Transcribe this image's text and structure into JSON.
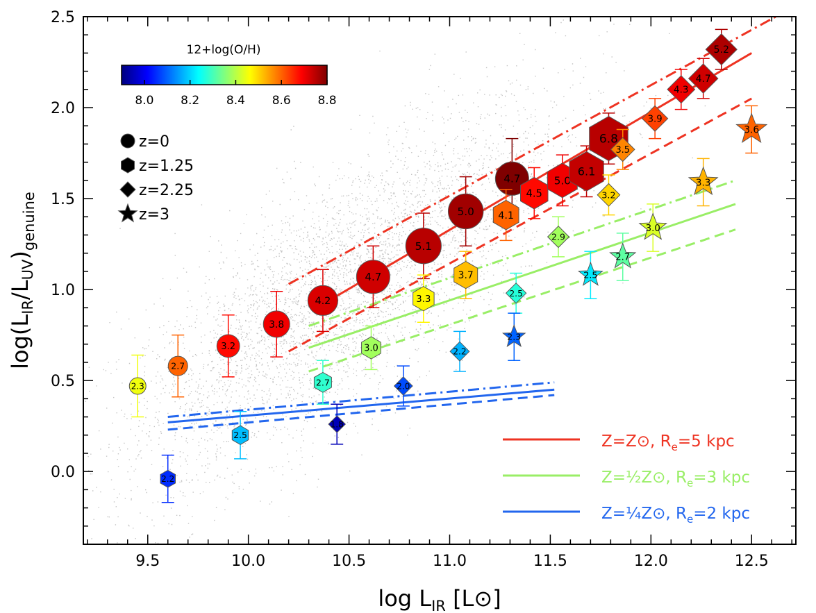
{
  "chart_data": {
    "type": "scatter",
    "xlabel": "log L",
    "xlabel_sub": "IR",
    "xlabel_unit": "[L⊙]",
    "ylabel": "log(L",
    "ylabel_sub1": "IR",
    "ylabel_mid": "/L",
    "ylabel_sub2": "UV",
    "ylabel_close": ")",
    "ylabel_sub3": "genuine",
    "xlim": [
      9.18,
      12.72
    ],
    "ylim": [
      -0.4,
      2.5
    ],
    "x_ticks": [
      "9.5",
      "10.0",
      "10.5",
      "11.0",
      "11.5",
      "12.0",
      "12.5"
    ],
    "y_ticks": [
      "0.0",
      "0.5",
      "1.0",
      "1.5",
      "2.0",
      "2.5"
    ],
    "colorbar": {
      "title": "12+log(O/H)",
      "range": [
        7.9,
        8.8
      ],
      "ticks": [
        "8.0",
        "8.2",
        "8.4",
        "8.6",
        "8.8"
      ]
    },
    "marker_legend": [
      {
        "shape": "circle",
        "label": "z=0"
      },
      {
        "shape": "hexagon",
        "label": "z=1.25"
      },
      {
        "shape": "diamond",
        "label": "z=2.25"
      },
      {
        "shape": "star",
        "label": "z=3"
      }
    ],
    "line_legend": [
      {
        "color": "#ee3322",
        "label": "Z=Z⊙, Re=5 kpc"
      },
      {
        "color": "#99ee66",
        "label": "Z=½Z⊙, Re=3 kpc"
      },
      {
        "color": "#2266ee",
        "label": "Z=¼Z⊙, Re=2 kpc"
      }
    ],
    "lines": [
      {
        "color": "#ee3322",
        "style": "solid",
        "x": [
          10.37,
          12.5
        ],
        "y": [
          0.92,
          2.3
        ]
      },
      {
        "color": "#ee3322",
        "style": "dashdot",
        "x": [
          10.2,
          12.62
        ],
        "y": [
          1.03,
          2.5
        ]
      },
      {
        "color": "#ee3322",
        "style": "dash",
        "x": [
          10.2,
          12.5
        ],
        "y": [
          0.66,
          2.05
        ]
      },
      {
        "color": "#99ee66",
        "style": "solid",
        "x": [
          10.3,
          12.42
        ],
        "y": [
          0.68,
          1.47
        ]
      },
      {
        "color": "#99ee66",
        "style": "dashdot",
        "x": [
          10.3,
          12.42
        ],
        "y": [
          0.8,
          1.6
        ]
      },
      {
        "color": "#99ee66",
        "style": "dash",
        "x": [
          10.3,
          12.42
        ],
        "y": [
          0.55,
          1.33
        ]
      },
      {
        "color": "#2266ee",
        "style": "solid",
        "x": [
          9.6,
          11.52
        ],
        "y": [
          0.27,
          0.45
        ]
      },
      {
        "color": "#2266ee",
        "style": "dashdot",
        "x": [
          9.6,
          11.52
        ],
        "y": [
          0.3,
          0.49
        ]
      },
      {
        "color": "#2266ee",
        "style": "dash",
        "x": [
          9.6,
          11.52
        ],
        "y": [
          0.23,
          0.42
        ]
      }
    ],
    "series": [
      {
        "name": "z=0",
        "shape": "circle",
        "points": [
          {
            "x": 9.45,
            "y": 0.47,
            "err": 0.17,
            "oh": 8.45,
            "size": 0.6,
            "label": "2.3"
          },
          {
            "x": 9.65,
            "y": 0.58,
            "err": 0.17,
            "oh": 8.6,
            "size": 0.7,
            "label": "2.7"
          },
          {
            "x": 9.9,
            "y": 0.69,
            "err": 0.17,
            "oh": 8.68,
            "size": 0.82,
            "label": "3.2"
          },
          {
            "x": 10.14,
            "y": 0.81,
            "err": 0.18,
            "oh": 8.7,
            "size": 0.95,
            "label": "3.8"
          },
          {
            "x": 10.37,
            "y": 0.94,
            "err": 0.17,
            "oh": 8.72,
            "size": 1.08,
            "label": "4.2"
          },
          {
            "x": 10.62,
            "y": 1.07,
            "err": 0.17,
            "oh": 8.73,
            "size": 1.2,
            "label": "4.7"
          },
          {
            "x": 10.87,
            "y": 1.24,
            "err": 0.18,
            "oh": 8.75,
            "size": 1.28,
            "label": "5.1"
          },
          {
            "x": 11.08,
            "y": 1.43,
            "err": 0.19,
            "oh": 8.77,
            "size": 1.26,
            "label": "5.0"
          },
          {
            "x": 11.31,
            "y": 1.61,
            "err": 0.22,
            "oh": 8.8,
            "size": 1.2,
            "label": "4.7"
          }
        ]
      },
      {
        "name": "z=1.25",
        "shape": "hexagon",
        "points": [
          {
            "x": 9.6,
            "y": -0.04,
            "err": 0.13,
            "oh": 8.05,
            "size": 0.62,
            "label": "2.2"
          },
          {
            "x": 9.96,
            "y": 0.2,
            "err": 0.13,
            "oh": 8.18,
            "size": 0.68,
            "label": "2.5"
          },
          {
            "x": 10.37,
            "y": 0.49,
            "err": 0.12,
            "oh": 8.28,
            "size": 0.72,
            "label": "2.7"
          },
          {
            "x": 10.61,
            "y": 0.68,
            "err": 0.12,
            "oh": 8.38,
            "size": 0.8,
            "label": "3.0"
          },
          {
            "x": 10.87,
            "y": 0.95,
            "err": 0.13,
            "oh": 8.47,
            "size": 0.88,
            "label": "3.3"
          },
          {
            "x": 11.08,
            "y": 1.08,
            "err": 0.13,
            "oh": 8.52,
            "size": 0.98,
            "label": "3.7"
          },
          {
            "x": 11.28,
            "y": 1.41,
            "err": 0.14,
            "oh": 8.6,
            "size": 1.06,
            "label": "4.1"
          },
          {
            "x": 11.42,
            "y": 1.53,
            "err": 0.14,
            "oh": 8.68,
            "size": 1.14,
            "label": "4.5"
          },
          {
            "x": 11.56,
            "y": 1.6,
            "err": 0.14,
            "oh": 8.7,
            "size": 1.24,
            "label": "5.0"
          },
          {
            "x": 11.68,
            "y": 1.65,
            "err": 0.14,
            "oh": 8.74,
            "size": 1.42,
            "label": "6.1"
          },
          {
            "x": 11.79,
            "y": 1.83,
            "err": 0.14,
            "oh": 8.75,
            "size": 1.6,
            "label": "6.8"
          }
        ]
      },
      {
        "name": "z=2.25",
        "shape": "diamond",
        "points": [
          {
            "x": 10.44,
            "y": 0.26,
            "err": 0.11,
            "oh": 7.95,
            "size": 0.55,
            "label": "1.8"
          },
          {
            "x": 10.77,
            "y": 0.47,
            "err": 0.11,
            "oh": 8.08,
            "size": 0.6,
            "label": "2.0"
          },
          {
            "x": 11.05,
            "y": 0.66,
            "err": 0.11,
            "oh": 8.17,
            "size": 0.63,
            "label": "2.2"
          },
          {
            "x": 11.33,
            "y": 0.98,
            "err": 0.11,
            "oh": 8.27,
            "size": 0.66,
            "label": "2.5"
          },
          {
            "x": 11.54,
            "y": 1.29,
            "err": 0.11,
            "oh": 8.38,
            "size": 0.7,
            "label": "2.9"
          },
          {
            "x": 11.79,
            "y": 1.52,
            "err": 0.11,
            "oh": 8.5,
            "size": 0.74,
            "label": "3.2"
          },
          {
            "x": 11.86,
            "y": 1.77,
            "err": 0.11,
            "oh": 8.57,
            "size": 0.78,
            "label": "3.5"
          },
          {
            "x": 12.02,
            "y": 1.94,
            "err": 0.11,
            "oh": 8.63,
            "size": 0.84,
            "label": "3.9"
          },
          {
            "x": 12.15,
            "y": 2.1,
            "err": 0.11,
            "oh": 8.7,
            "size": 0.9,
            "label": "4.3"
          },
          {
            "x": 12.26,
            "y": 2.16,
            "err": 0.11,
            "oh": 8.73,
            "size": 0.96,
            "label": "4.7"
          },
          {
            "x": 12.35,
            "y": 2.32,
            "err": 0.11,
            "oh": 8.76,
            "size": 1.02,
            "label": "5.2"
          }
        ]
      },
      {
        "name": "z=3",
        "shape": "star",
        "points": [
          {
            "x": 11.32,
            "y": 0.74,
            "err": 0.13,
            "oh": 8.1,
            "size": 0.7,
            "label": "2.3"
          },
          {
            "x": 11.7,
            "y": 1.08,
            "err": 0.13,
            "oh": 8.22,
            "size": 0.75,
            "label": "2.5"
          },
          {
            "x": 11.86,
            "y": 1.18,
            "err": 0.13,
            "oh": 8.32,
            "size": 0.8,
            "label": "2.7"
          },
          {
            "x": 12.01,
            "y": 1.34,
            "err": 0.13,
            "oh": 8.43,
            "size": 0.85,
            "label": "3.0"
          },
          {
            "x": 12.26,
            "y": 1.59,
            "err": 0.13,
            "oh": 8.53,
            "size": 0.9,
            "label": "3.3"
          },
          {
            "x": 12.5,
            "y": 1.88,
            "err": 0.13,
            "oh": 8.6,
            "size": 0.95,
            "label": "3.6"
          }
        ]
      }
    ]
  }
}
